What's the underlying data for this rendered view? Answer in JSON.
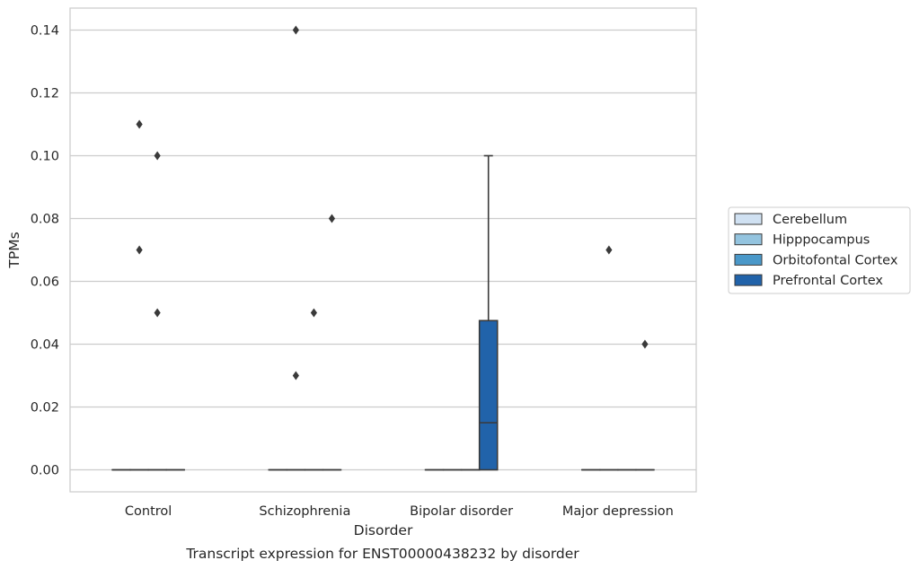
{
  "chart_data": {
    "type": "box",
    "caption": "Transcript expression for ENST00000438232 by disorder",
    "xlabel": "Disorder",
    "ylabel": "TPMs",
    "ylim": [
      -0.007,
      0.147
    ],
    "yticks": [
      0.0,
      0.02,
      0.04,
      0.06,
      0.08,
      0.1,
      0.12,
      0.14
    ],
    "ytick_labels": [
      "0.00",
      "0.02",
      "0.04",
      "0.06",
      "0.08",
      "0.10",
      "0.12",
      "0.14"
    ],
    "grid": true,
    "legend_position": "right",
    "categories": [
      "Control",
      "Schizophrenia",
      "Bipolar disorder",
      "Major depression"
    ],
    "series": [
      {
        "name": "Cerebellum",
        "color": "#d0e1f2",
        "boxes": [
          {
            "min": 0,
            "q1": 0,
            "median": 0,
            "q3": 0,
            "max": 0,
            "outliers": []
          },
          {
            "min": 0,
            "q1": 0,
            "median": 0,
            "q3": 0,
            "max": 0,
            "outliers": []
          },
          {
            "min": 0,
            "q1": 0,
            "median": 0,
            "q3": 0,
            "max": 0,
            "outliers": []
          },
          {
            "min": 0,
            "q1": 0,
            "median": 0,
            "q3": 0,
            "max": 0,
            "outliers": []
          }
        ]
      },
      {
        "name": "Hipppocampus",
        "color": "#94c4df",
        "boxes": [
          {
            "min": 0,
            "q1": 0,
            "median": 0,
            "q3": 0,
            "max": 0,
            "outliers": [
              0.11,
              0.07
            ]
          },
          {
            "min": 0,
            "q1": 0,
            "median": 0,
            "q3": 0,
            "max": 0,
            "outliers": [
              0.14,
              0.03
            ]
          },
          {
            "min": 0,
            "q1": 0,
            "median": 0,
            "q3": 0,
            "max": 0,
            "outliers": []
          },
          {
            "min": 0,
            "q1": 0,
            "median": 0,
            "q3": 0,
            "max": 0,
            "outliers": [
              0.07
            ]
          }
        ]
      },
      {
        "name": "Orbitofontal Cortex",
        "color": "#4a98c9",
        "boxes": [
          {
            "min": 0,
            "q1": 0,
            "median": 0,
            "q3": 0,
            "max": 0,
            "outliers": [
              0.1,
              0.05
            ]
          },
          {
            "min": 0,
            "q1": 0,
            "median": 0,
            "q3": 0,
            "max": 0,
            "outliers": [
              0.05
            ]
          },
          {
            "min": 0,
            "q1": 0,
            "median": 0,
            "q3": 0,
            "max": 0,
            "outliers": []
          },
          {
            "min": 0,
            "q1": 0,
            "median": 0,
            "q3": 0,
            "max": 0,
            "outliers": []
          }
        ]
      },
      {
        "name": "Prefrontal Cortex",
        "color": "#2163aa",
        "boxes": [
          {
            "min": 0,
            "q1": 0,
            "median": 0,
            "q3": 0,
            "max": 0,
            "outliers": []
          },
          {
            "min": 0,
            "q1": 0,
            "median": 0,
            "q3": 0,
            "max": 0,
            "outliers": [
              0.08
            ]
          },
          {
            "min": 0,
            "q1": 0,
            "median": 0.015,
            "q3": 0.0475,
            "max": 0.1,
            "outliers": []
          },
          {
            "min": 0,
            "q1": 0,
            "median": 0,
            "q3": 0,
            "max": 0,
            "outliers": [
              0.04
            ]
          }
        ]
      }
    ]
  }
}
